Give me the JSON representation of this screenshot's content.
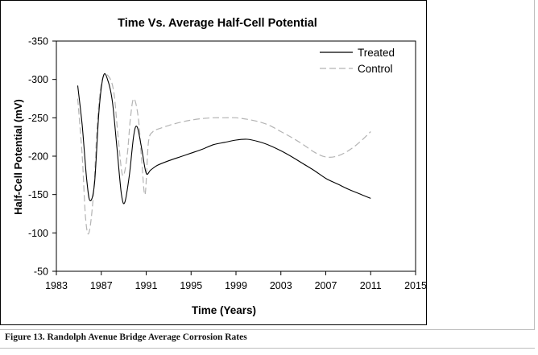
{
  "caption": "Figure 13. Randolph Avenue Bridge Average Corrosion Rates",
  "chart_data": {
    "type": "line",
    "title": "Time Vs. Average Half-Cell Potential",
    "xlabel": "Time (Years)",
    "ylabel": "Half-Cell Potential (mV)",
    "xlim": [
      1983,
      2015
    ],
    "ylim": [
      -350,
      -50
    ],
    "y_reversed": true,
    "xticks": [
      1983,
      1987,
      1991,
      1995,
      1999,
      2003,
      2007,
      2011,
      2015
    ],
    "yticks": [
      -350,
      -300,
      -250,
      -200,
      -150,
      -100,
      -50
    ],
    "grid": false,
    "legend_position": "top-right",
    "series": [
      {
        "name": "Treated",
        "color": "#000000",
        "dash": "solid",
        "points": [
          [
            1984.9,
            -292
          ],
          [
            1985.3,
            -240
          ],
          [
            1985.7,
            -170
          ],
          [
            1986.0,
            -142
          ],
          [
            1986.4,
            -165
          ],
          [
            1986.8,
            -260
          ],
          [
            1987.2,
            -305
          ],
          [
            1987.6,
            -298
          ],
          [
            1988.0,
            -270
          ],
          [
            1988.4,
            -210
          ],
          [
            1988.8,
            -150
          ],
          [
            1989.1,
            -140
          ],
          [
            1989.5,
            -175
          ],
          [
            1989.9,
            -228
          ],
          [
            1990.2,
            -238
          ],
          [
            1990.6,
            -210
          ],
          [
            1991.0,
            -178
          ],
          [
            1991.4,
            -182
          ],
          [
            1992.0,
            -188
          ],
          [
            1993.0,
            -194
          ],
          [
            1994.0,
            -199
          ],
          [
            1995.0,
            -204
          ],
          [
            1996.0,
            -209
          ],
          [
            1997.0,
            -215
          ],
          [
            1998.0,
            -218
          ],
          [
            1999.0,
            -221
          ],
          [
            2000.0,
            -222
          ],
          [
            2001.0,
            -219
          ],
          [
            2002.0,
            -214
          ],
          [
            2003.0,
            -207
          ],
          [
            2004.0,
            -199
          ],
          [
            2005.0,
            -190
          ],
          [
            2006.0,
            -181
          ],
          [
            2007.0,
            -171
          ],
          [
            2008.0,
            -164
          ],
          [
            2009.0,
            -157
          ],
          [
            2010.0,
            -151
          ],
          [
            2011.0,
            -145
          ]
        ]
      },
      {
        "name": "Control",
        "color": "#b4b4b4",
        "dash": "dashed",
        "points": [
          [
            1984.9,
            -275
          ],
          [
            1985.3,
            -200
          ],
          [
            1985.6,
            -120
          ],
          [
            1985.9,
            -100
          ],
          [
            1986.3,
            -150
          ],
          [
            1986.7,
            -255
          ],
          [
            1987.1,
            -300
          ],
          [
            1987.6,
            -305
          ],
          [
            1988.1,
            -285
          ],
          [
            1988.5,
            -225
          ],
          [
            1988.9,
            -175
          ],
          [
            1989.3,
            -200
          ],
          [
            1989.6,
            -250
          ],
          [
            1989.9,
            -275
          ],
          [
            1990.3,
            -250
          ],
          [
            1990.6,
            -195
          ],
          [
            1990.9,
            -150
          ],
          [
            1991.2,
            -218
          ],
          [
            1991.6,
            -232
          ],
          [
            1992.0,
            -235
          ],
          [
            1993.0,
            -240
          ],
          [
            1994.0,
            -244
          ],
          [
            1995.0,
            -247
          ],
          [
            1996.0,
            -249
          ],
          [
            1997.0,
            -250
          ],
          [
            1998.0,
            -250
          ],
          [
            1999.0,
            -250
          ],
          [
            2000.0,
            -248
          ],
          [
            2001.0,
            -245
          ],
          [
            2002.0,
            -240
          ],
          [
            2003.0,
            -232
          ],
          [
            2004.0,
            -224
          ],
          [
            2005.0,
            -215
          ],
          [
            2006.0,
            -205
          ],
          [
            2007.0,
            -199
          ],
          [
            2008.0,
            -200
          ],
          [
            2009.0,
            -207
          ],
          [
            2010.0,
            -218
          ],
          [
            2011.0,
            -232
          ]
        ]
      }
    ]
  }
}
